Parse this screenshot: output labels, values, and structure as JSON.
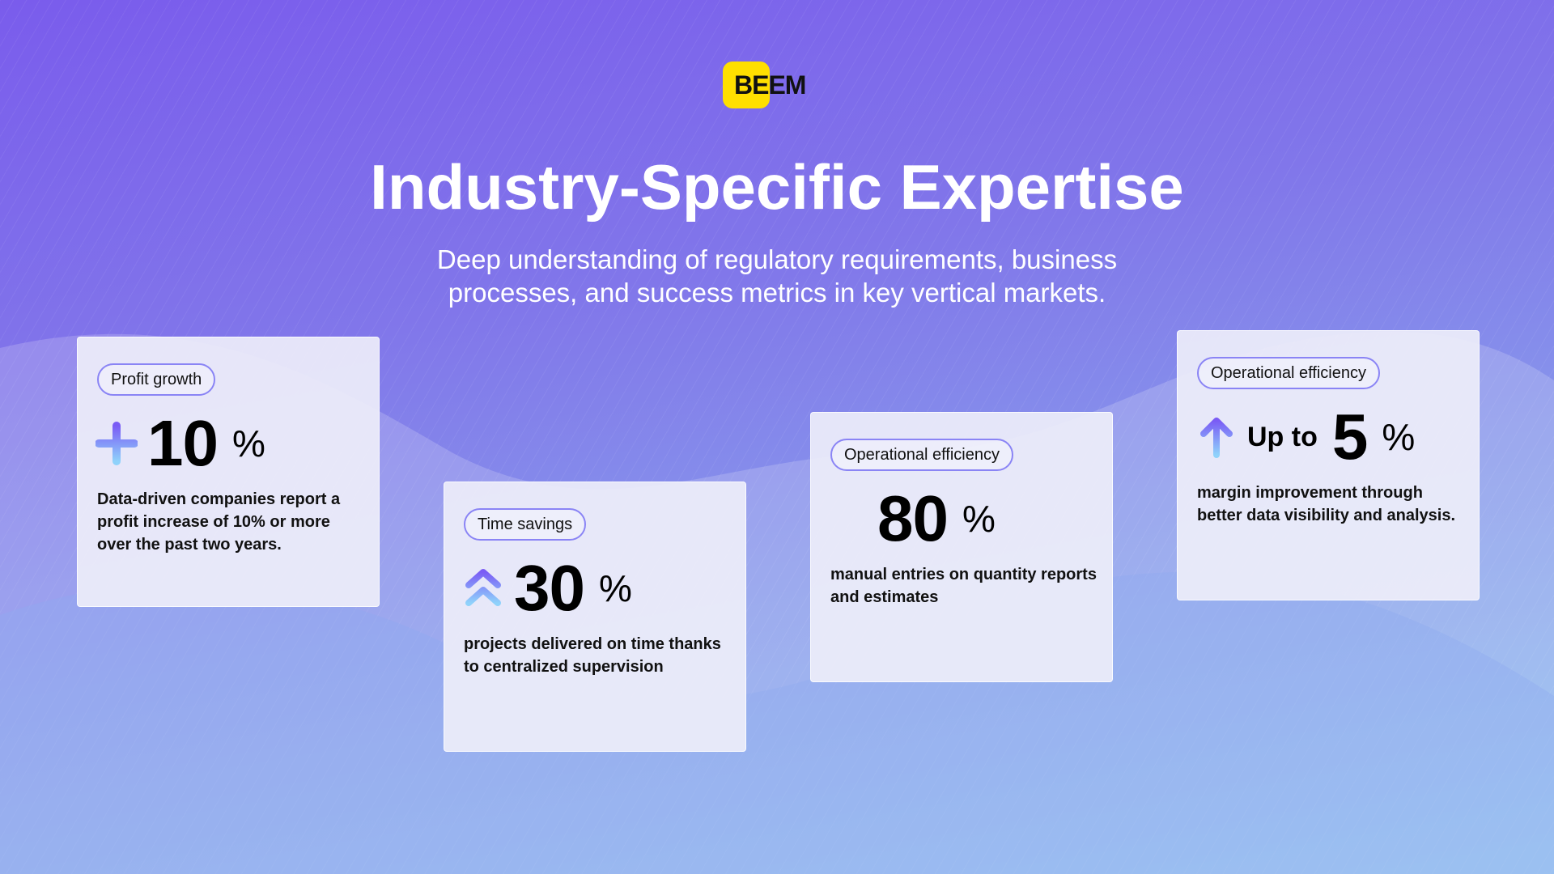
{
  "brand": {
    "logo_text": "BEEM",
    "accent": "#ffdf00"
  },
  "header": {
    "title": "Industry-Specific Expertise",
    "subtitle": "Deep understanding of regulatory requirements, business processes, and success metrics in key vertical markets."
  },
  "cards": [
    {
      "tag": "Profit growth",
      "icon": "plus-icon",
      "prefix": "",
      "value": "10",
      "unit": "%",
      "description": "Data-driven companies report a profit increase of 10% or more over the past two years."
    },
    {
      "tag": "Time savings",
      "icon": "double-chevron-up-icon",
      "prefix": "",
      "value": "30",
      "unit": "%",
      "description": "projects delivered on time thanks to centralized supervision"
    },
    {
      "tag": "Operational efficiency",
      "icon": "minus-icon",
      "prefix": "",
      "value": "80",
      "unit": "%",
      "description": "manual entries on quantity reports and estimates"
    },
    {
      "tag": "Operational efficiency",
      "icon": "arrow-up-icon",
      "prefix": "Up to",
      "value": "5",
      "unit": "%",
      "description": "margin improvement through better data visibility and analysis."
    }
  ]
}
